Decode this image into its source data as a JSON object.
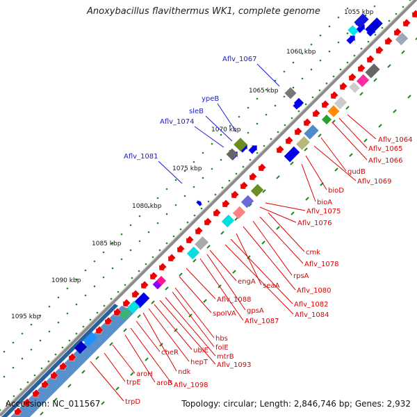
{
  "title": "Anoxybacillus flavithermus WK1, complete genome",
  "footer": {
    "accession_label": "Accession:",
    "accession": "NC_011567",
    "topology_label": "Topology:",
    "topology": "circular",
    "length_label": "Length:",
    "length": "2,846,746 bp",
    "genes_label": "Genes:",
    "genes": "2,932"
  },
  "colors": {
    "forward_label": "#1a1ad6",
    "reverse_label": "#dd0000",
    "reverse_genes": "#ee0000",
    "forward_genes": "#0000ee",
    "backbone": "#8c8c8c",
    "tick_dots": "#1f8a1f",
    "gc_band": "#4f8ac9"
  },
  "kbp_ticks": [
    "1055 kbp",
    "1060 kbp",
    "1065 kbp",
    "1070 kbp",
    "1075 kbp",
    "1080 kbp",
    "1085 kbp",
    "1090 kbp",
    "1095 kbp"
  ],
  "forward_labels": [
    "Aflv_1067",
    "ypeB",
    "sleB",
    "Aflv_1074",
    "Aflv_1081"
  ],
  "reverse_labels": [
    "Aflv_1064",
    "Aflv_1065",
    "Aflv_1066",
    "gudB",
    "Aflv_1069",
    "bioD",
    "bioA",
    "Aflv_1075",
    "Aflv_1076",
    "cmk",
    "Aflv_1078",
    "rpsA",
    "Aflv_1080",
    "seaA",
    "Aflv_1082",
    "engA",
    "Aflv_1084",
    "gpsA",
    "Aflv_1087",
    "Aflv_1088",
    "spoIVA",
    "hbs",
    "folE",
    "mtrB",
    "Aflv_1093",
    "ubiE",
    "hepT",
    "cheR",
    "ndk",
    "aroH",
    "trpE",
    "aroB",
    "Aflv_1098",
    "trpD"
  ],
  "icons": [
    "gene-arrow-icon"
  ]
}
